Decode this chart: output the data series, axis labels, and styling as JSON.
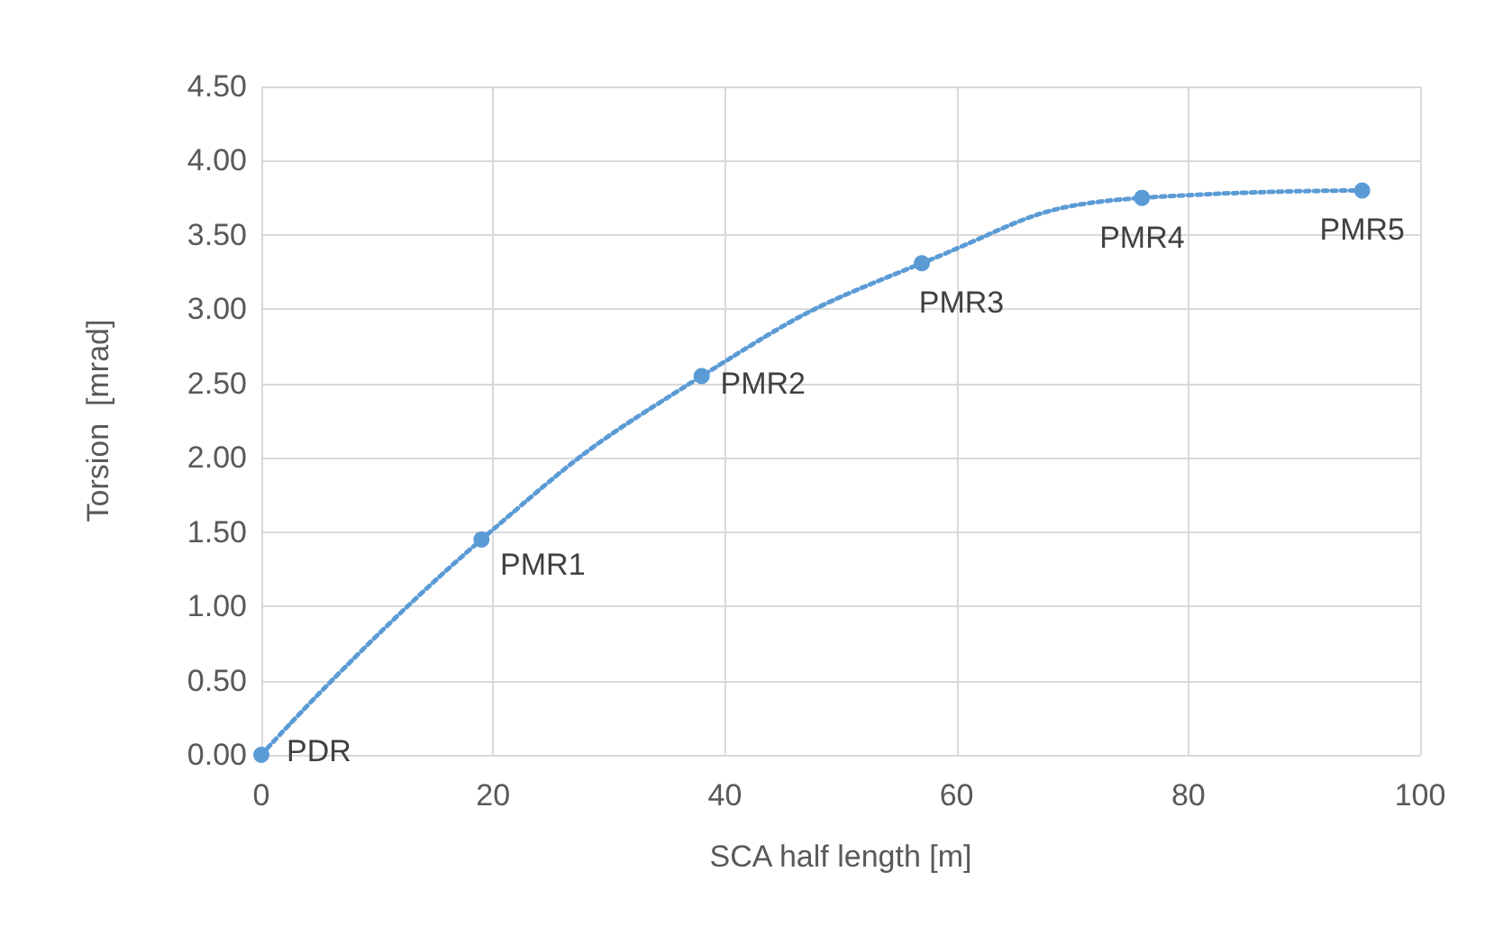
{
  "chart_data": {
    "type": "line",
    "xlabel": "SCA half length [m]",
    "ylabel": "Torsion  [mrad]",
    "x": [
      0,
      19,
      38,
      57,
      76,
      95
    ],
    "series": [
      {
        "color": "#5b9bd5",
        "values": [
          0,
          1.45,
          2.55,
          3.31,
          3.75,
          3.8
        ]
      }
    ],
    "xlim": [
      0,
      100
    ],
    "xticks": [
      0,
      20,
      40,
      60,
      80,
      100
    ],
    "ylim": [
      0,
      4.5
    ],
    "yticks": [
      {
        "value": 0,
        "label": "0.00"
      },
      {
        "value": 0.5,
        "label": "0.50"
      },
      {
        "value": 1,
        "label": "1.00"
      },
      {
        "value": 1.5,
        "label": "1.50"
      },
      {
        "value": 2,
        "label": "2.00"
      },
      {
        "value": 2.5,
        "label": "2.50"
      },
      {
        "value": 3,
        "label": "3.00"
      },
      {
        "value": 3.5,
        "label": "3.50"
      },
      {
        "value": 4,
        "label": "4.00"
      },
      {
        "value": 4.5,
        "label": "4.50"
      }
    ],
    "grid": true,
    "marker": "circle",
    "line_style": "dotted",
    "annotations": [
      {
        "text": "PDR",
        "x": 0,
        "y": 0
      },
      {
        "text": "PMR1",
        "x": 19,
        "y": 1.45
      },
      {
        "text": "PMR2",
        "x": 38,
        "y": 2.55
      },
      {
        "text": "PMR3",
        "x": 57,
        "y": 3.31
      },
      {
        "text": "PMR4",
        "x": 76,
        "y": 3.75
      },
      {
        "text": "PMR5",
        "x": 95,
        "y": 3.8
      }
    ]
  }
}
